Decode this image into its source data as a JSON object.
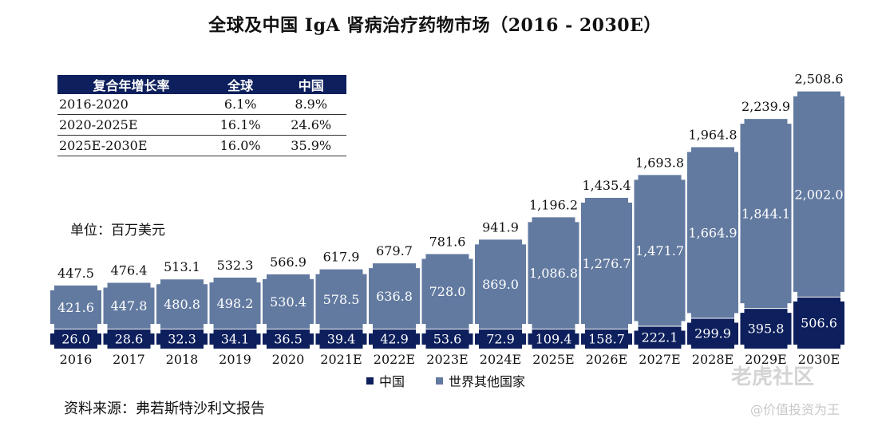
{
  "title": "全球及中国 IgA 肾病治疗药物市场（2016 - 2030E）",
  "cagr_table": {
    "headers": [
      "复合年增长率",
      "全球",
      "中国"
    ],
    "rows": [
      [
        "2016-2020",
        "6.1%",
        "8.9%"
      ],
      [
        "2020-2025E",
        "16.1%",
        "24.6%"
      ],
      [
        "2025E-2030E",
        "16.0%",
        "35.9%"
      ]
    ]
  },
  "unit_label": "单位：百万美元",
  "source_label": "资料来源：弗若斯特沙利文报告",
  "watermark": {
    "brand": "老虎社区",
    "handle": "@价值投资为王"
  },
  "chart_data": {
    "type": "bar",
    "stacked": true,
    "categories": [
      "2016",
      "2017",
      "2018",
      "2019",
      "2020",
      "2021E",
      "2022E",
      "2023E",
      "2024E",
      "2025E",
      "2026E",
      "2027E",
      "2028E",
      "2029E",
      "2030E"
    ],
    "series": [
      {
        "name": "中国",
        "color": "#0d1f5c",
        "values": [
          26.0,
          28.6,
          32.3,
          34.1,
          36.5,
          39.4,
          42.9,
          53.6,
          72.9,
          109.4,
          158.7,
          222.1,
          299.9,
          395.8,
          506.6
        ],
        "labels": [
          "26.0",
          "28.6",
          "32.3",
          "34.1",
          "36.5",
          "39.4",
          "42.9",
          "53.6",
          "72.9",
          "109.4",
          "158.7",
          "222.1",
          "299.9",
          "395.8",
          "506.6"
        ]
      },
      {
        "name": "世界其他国家",
        "color": "#627aa0",
        "values": [
          421.6,
          447.8,
          480.8,
          498.2,
          530.4,
          578.5,
          636.8,
          728.0,
          869.0,
          1086.8,
          1276.7,
          1471.7,
          1664.9,
          1844.1,
          2002.0
        ],
        "labels": [
          "421.6",
          "447.8",
          "480.8",
          "498.2",
          "530.4",
          "578.5",
          "636.8",
          "728.0",
          "869.0",
          "1,086.8",
          "1,276.7",
          "1,471.7",
          "1,664.9",
          "1,844.1",
          "2,002.0"
        ]
      }
    ],
    "totals": [
      "447.5",
      "476.4",
      "513.1",
      "532.3",
      "566.9",
      "617.9",
      "679.7",
      "781.6",
      "941.9",
      "1,196.2",
      "1,435.4",
      "1,693.8",
      "1,964.8",
      "2,239.9",
      "2,508.6"
    ],
    "total_values": [
      447.5,
      476.4,
      513.1,
      532.3,
      566.9,
      617.9,
      679.7,
      781.6,
      941.9,
      1196.2,
      1435.4,
      1693.8,
      1964.8,
      2239.9,
      2508.6
    ],
    "legend_position": "bottom-center",
    "grid": false
  }
}
